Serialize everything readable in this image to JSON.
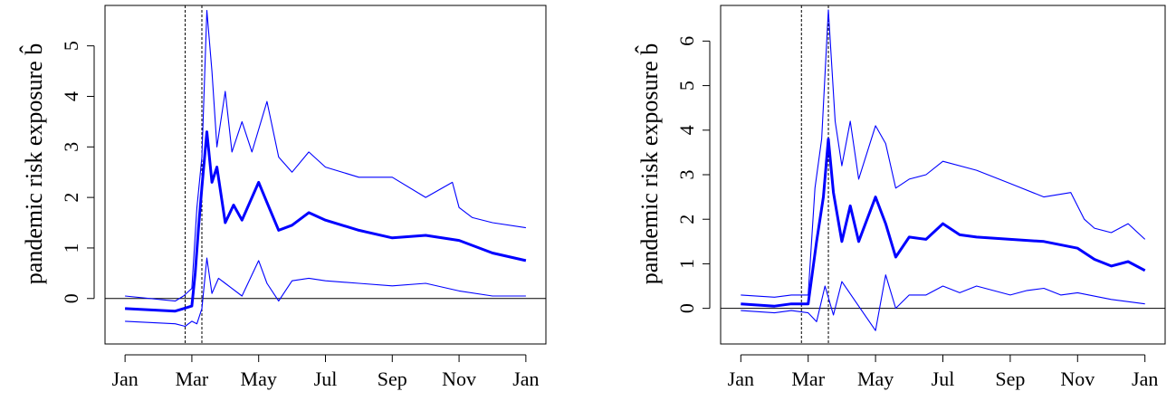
{
  "chart_data": [
    {
      "type": "line",
      "ylabel": "pandemic risk exposure b̂",
      "x_tick_labels": [
        "Jan",
        "Mar",
        "May",
        "Jul",
        "Sep",
        "Nov",
        "Jan"
      ],
      "y_tick_labels": [
        "0",
        "1",
        "2",
        "3",
        "4",
        "5"
      ],
      "ylim": [
        -0.9,
        5.8
      ],
      "xlim_months": [
        -0.6,
        12.6
      ],
      "grid": false,
      "reference_lines": {
        "y_zero": 0,
        "vertical_dashed_months": [
          1.8,
          2.3
        ]
      },
      "series": [
        {
          "role": "estimate",
          "x": [
            0,
            1.5,
            1.75,
            2.0,
            2.1,
            2.2,
            2.3,
            2.45,
            2.6,
            2.75,
            3.0,
            3.25,
            3.5,
            4.0,
            4.25,
            4.6,
            5.0,
            5.5,
            6.0,
            6.5,
            7.0,
            8.0,
            9.0,
            10.0,
            11.0,
            12.0
          ],
          "y": [
            -0.2,
            -0.25,
            -0.2,
            -0.15,
            0.5,
            1.4,
            2.2,
            3.3,
            2.3,
            2.6,
            1.5,
            1.85,
            1.55,
            2.3,
            1.9,
            1.35,
            1.45,
            1.7,
            1.55,
            1.45,
            1.35,
            1.2,
            1.25,
            1.15,
            0.9,
            0.75
          ]
        },
        {
          "role": "upper band",
          "x": [
            0,
            1.5,
            1.75,
            2.0,
            2.15,
            2.3,
            2.45,
            2.6,
            2.75,
            3.0,
            3.2,
            3.5,
            3.8,
            4.25,
            4.6,
            5.0,
            5.5,
            6.0,
            7.0,
            8.0,
            9.0,
            9.8,
            10.0,
            10.4,
            11.0,
            12.0
          ],
          "y": [
            0.05,
            -0.05,
            0.05,
            0.2,
            1.8,
            2.8,
            5.7,
            4.5,
            3.0,
            4.1,
            2.9,
            3.5,
            2.9,
            3.9,
            2.8,
            2.5,
            2.9,
            2.6,
            2.4,
            2.4,
            2.0,
            2.3,
            1.8,
            1.6,
            1.5,
            1.4
          ]
        },
        {
          "role": "lower band",
          "x": [
            0,
            1.5,
            1.8,
            2.0,
            2.15,
            2.3,
            2.45,
            2.6,
            2.8,
            3.0,
            3.5,
            4.0,
            4.25,
            4.6,
            5.0,
            5.5,
            6.0,
            7.0,
            8.0,
            9.0,
            10.0,
            11.0,
            12.0
          ],
          "y": [
            -0.45,
            -0.5,
            -0.55,
            -0.45,
            -0.5,
            -0.2,
            0.8,
            0.1,
            0.4,
            0.3,
            0.05,
            0.75,
            0.3,
            -0.05,
            0.35,
            0.4,
            0.35,
            0.3,
            0.25,
            0.3,
            0.15,
            0.05,
            0.05
          ]
        }
      ]
    },
    {
      "type": "line",
      "ylabel": "pandemic risk exposure b̂",
      "x_tick_labels": [
        "Jan",
        "Mar",
        "May",
        "Jul",
        "Sep",
        "Nov",
        "Jan"
      ],
      "y_tick_labels": [
        "0",
        "1",
        "2",
        "3",
        "4",
        "5",
        "6"
      ],
      "ylim": [
        -0.8,
        6.8
      ],
      "xlim_months": [
        -0.6,
        12.6
      ],
      "grid": false,
      "reference_lines": {
        "y_zero": 0,
        "vertical_dashed_months": [
          1.8,
          2.6
        ]
      },
      "series": [
        {
          "role": "estimate",
          "x": [
            0,
            1.0,
            1.5,
            2.0,
            2.25,
            2.45,
            2.6,
            2.75,
            3.0,
            3.25,
            3.5,
            4.0,
            4.3,
            4.6,
            5.0,
            5.5,
            6.0,
            6.5,
            7.0,
            8.0,
            9.0,
            10.0,
            10.5,
            11.0,
            11.5,
            12.0
          ],
          "y": [
            0.1,
            0.05,
            0.1,
            0.1,
            1.5,
            2.5,
            3.8,
            2.6,
            1.5,
            2.3,
            1.5,
            2.5,
            1.9,
            1.15,
            1.6,
            1.55,
            1.9,
            1.65,
            1.6,
            1.55,
            1.5,
            1.35,
            1.1,
            0.95,
            1.05,
            0.85
          ]
        },
        {
          "role": "upper band",
          "x": [
            0,
            1.0,
            1.5,
            2.0,
            2.2,
            2.4,
            2.6,
            2.8,
            3.0,
            3.25,
            3.5,
            4.0,
            4.3,
            4.6,
            5.0,
            5.5,
            6.0,
            7.0,
            8.0,
            9.0,
            9.8,
            10.2,
            10.5,
            11.0,
            11.5,
            12.0
          ],
          "y": [
            0.3,
            0.25,
            0.3,
            0.3,
            2.7,
            3.8,
            6.7,
            4.2,
            3.2,
            4.2,
            2.9,
            4.1,
            3.7,
            2.7,
            2.9,
            3.0,
            3.3,
            3.1,
            2.8,
            2.5,
            2.6,
            2.0,
            1.8,
            1.7,
            1.9,
            1.55
          ]
        },
        {
          "role": "lower band",
          "x": [
            0,
            1.0,
            1.5,
            2.0,
            2.25,
            2.5,
            2.75,
            3.0,
            3.5,
            4.0,
            4.3,
            4.6,
            5.0,
            5.5,
            6.0,
            6.5,
            7.0,
            8.0,
            8.5,
            9.0,
            9.5,
            10.0,
            11.0,
            12.0
          ],
          "y": [
            -0.05,
            -0.1,
            -0.05,
            -0.1,
            -0.3,
            0.5,
            -0.15,
            0.6,
            0.05,
            -0.5,
            0.75,
            0.0,
            0.3,
            0.3,
            0.5,
            0.35,
            0.5,
            0.3,
            0.4,
            0.45,
            0.3,
            0.35,
            0.2,
            0.1
          ]
        }
      ]
    }
  ],
  "style": {
    "series_color": "#0000ff",
    "axis_color": "#000000",
    "estimate_width": 3,
    "band_width": 1.1
  }
}
